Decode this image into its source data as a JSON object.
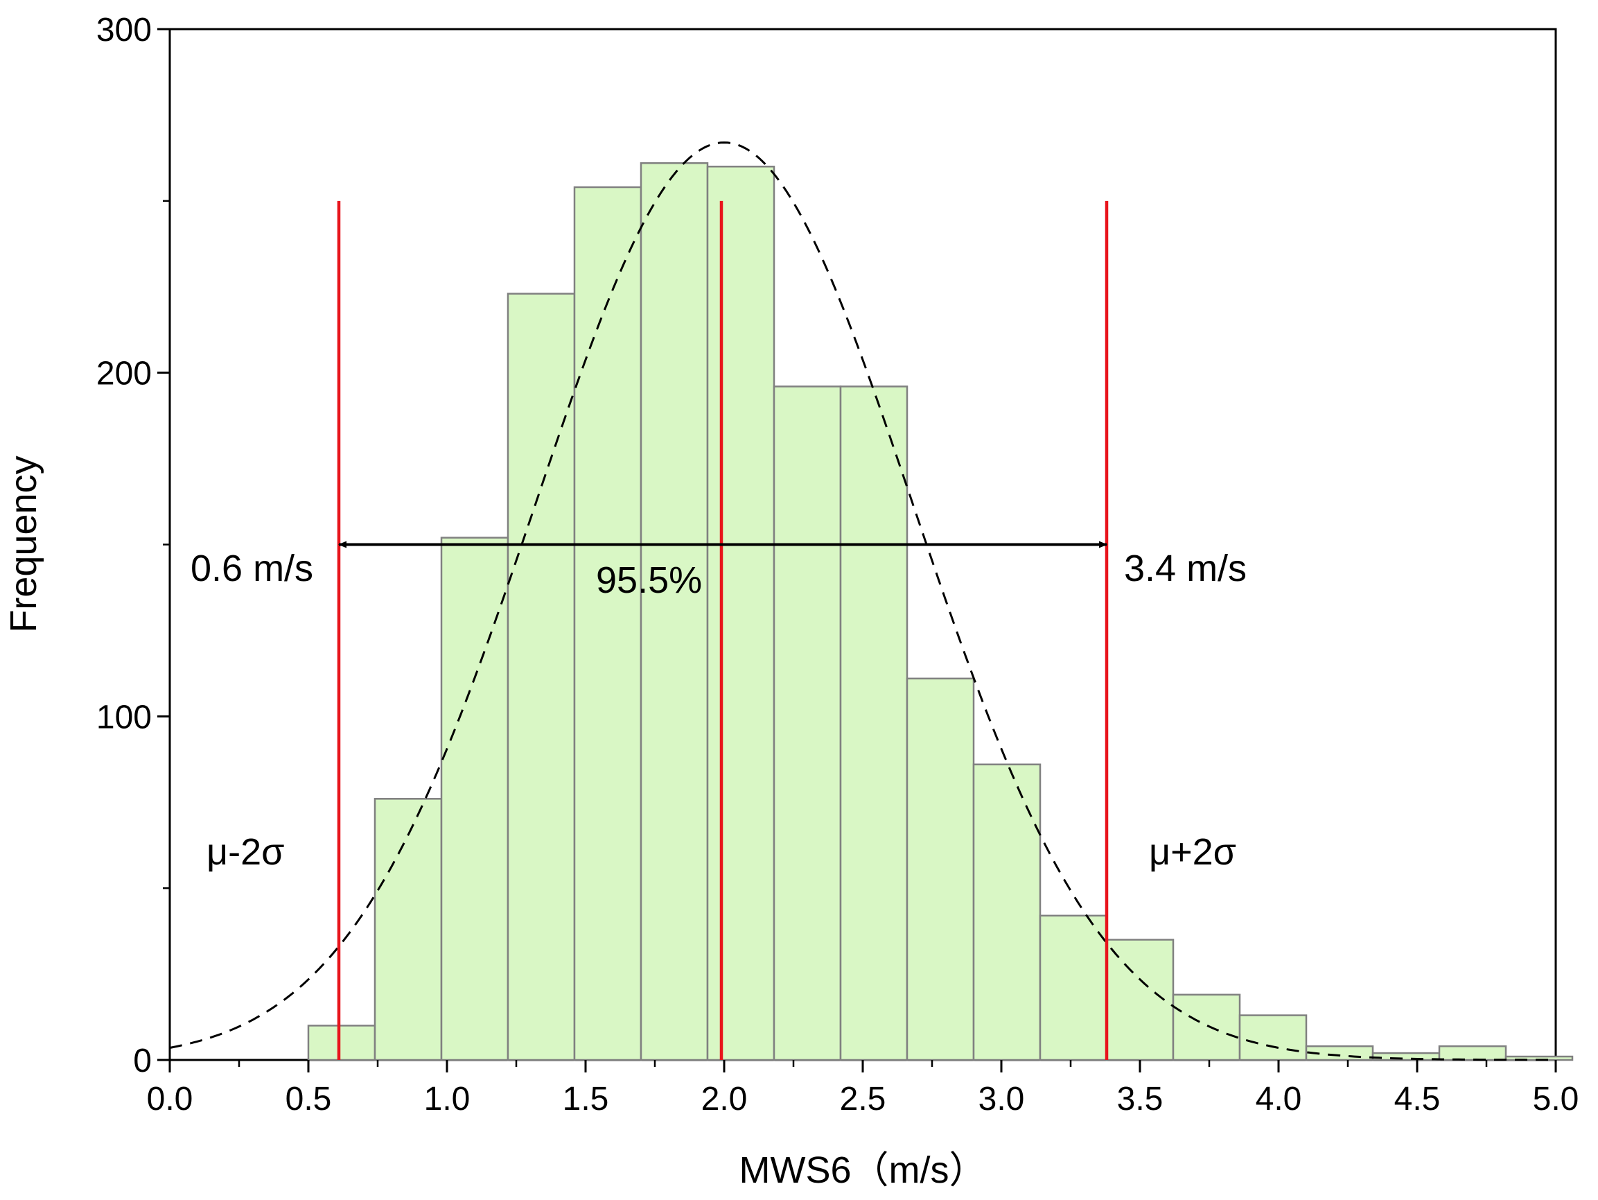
{
  "chart_data": {
    "type": "bar",
    "title": "",
    "xlabel": "MWS6（m/s）",
    "ylabel": "Frequency",
    "xlim": [
      0.0,
      5.0
    ],
    "ylim": [
      0,
      300
    ],
    "xticks": [
      "0.0",
      "0.5",
      "1.0",
      "1.5",
      "2.0",
      "2.5",
      "3.0",
      "3.5",
      "4.0",
      "4.5",
      "5.0"
    ],
    "yticks": [
      "0",
      "100",
      "200",
      "300"
    ],
    "histogram": {
      "bin_width": 0.24,
      "bins": [
        {
          "start": 0.5,
          "value": 10
        },
        {
          "start": 0.74,
          "value": 76
        },
        {
          "start": 0.98,
          "value": 152
        },
        {
          "start": 1.22,
          "value": 223
        },
        {
          "start": 1.46,
          "value": 254
        },
        {
          "start": 1.7,
          "value": 261
        },
        {
          "start": 1.94,
          "value": 260
        },
        {
          "start": 2.18,
          "value": 196
        },
        {
          "start": 2.42,
          "value": 196
        },
        {
          "start": 2.66,
          "value": 111
        },
        {
          "start": 2.9,
          "value": 86
        },
        {
          "start": 3.14,
          "value": 42
        },
        {
          "start": 3.38,
          "value": 35
        },
        {
          "start": 3.62,
          "value": 19
        },
        {
          "start": 3.86,
          "value": 13
        },
        {
          "start": 4.1,
          "value": 4
        },
        {
          "start": 4.34,
          "value": 2
        },
        {
          "start": 4.58,
          "value": 4
        },
        {
          "start": 4.82,
          "value": 1
        }
      ]
    },
    "normal_curve": {
      "mean": 2.0,
      "sd": 0.68,
      "peak": 267,
      "style": "dashed"
    },
    "vertical_lines": [
      {
        "x": 0.61,
        "top": 250
      },
      {
        "x": 1.99,
        "top": 250
      },
      {
        "x": 3.38,
        "top": 250
      }
    ],
    "range_arrow": {
      "x_start": 0.61,
      "x_end": 3.38,
      "y": 150
    },
    "annotations": {
      "left_value": "0.6 m/s",
      "right_value": "3.4 m/s",
      "percent": "95.5%",
      "left_sigma": "μ-2σ",
      "right_sigma": "μ+2σ"
    },
    "colors": {
      "bar_fill": "#d9f7c5",
      "bar_stroke": "#808080",
      "marker_line": "#e8141c",
      "curve": "#000000",
      "arrow": "#000000"
    }
  }
}
